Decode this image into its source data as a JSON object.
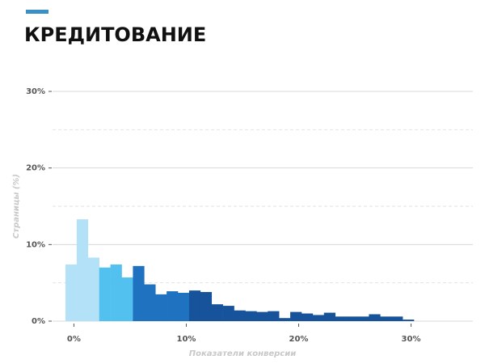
{
  "chart_data": {
    "type": "histogram",
    "title": "КРЕДИТОВАНИЕ",
    "x_label": "Показатели конверсии",
    "y_label": "Страницы (%)",
    "bins": [
      -0.75,
      0.25,
      1.25,
      2.25,
      3.25,
      4.25,
      5.25,
      6.25,
      7.25,
      8.25,
      9.25,
      10.25,
      11.25,
      12.25,
      13.25,
      14.25,
      15.25,
      16.25,
      17.25,
      18.25,
      19.25,
      20.25,
      21.25,
      22.25,
      23.25,
      24.25,
      25.25,
      26.25,
      27.25,
      28.25,
      29.25,
      30.25
    ],
    "values": [
      7.4,
      13.3,
      8.3,
      7.0,
      7.4,
      5.7,
      7.2,
      4.8,
      3.5,
      3.9,
      3.7,
      4.0,
      3.8,
      2.2,
      2.0,
      1.4,
      1.3,
      1.2,
      1.3,
      0.4,
      1.2,
      1.0,
      0.8,
      1.1,
      0.6,
      0.6,
      0.6,
      0.9,
      0.6,
      0.6,
      0.2
    ],
    "colors": [
      "#b3e2f8",
      "#b3e2f8",
      "#b3e2f8",
      "#52c1ef",
      "#52c1ef",
      "#52c1ef",
      "#1f72bf",
      "#1f72bf",
      "#1f72bf",
      "#1f72bf",
      "#1f72bf",
      "#17539a",
      "#17539a",
      "#17539a",
      "#17539a",
      "#17539a",
      "#17539a",
      "#17539a",
      "#17539a",
      "#17539a",
      "#17539a",
      "#17539a",
      "#17539a",
      "#17539a",
      "#17539a",
      "#17539a",
      "#17539a",
      "#17539a",
      "#17539a",
      "#17539a",
      "#17539a"
    ],
    "xlim": [
      -1.9,
      35.5
    ],
    "ylim": [
      0,
      30
    ],
    "xticks": [
      {
        "value": 0,
        "label": "0%"
      },
      {
        "value": 10,
        "label": "10%"
      },
      {
        "value": 20,
        "label": "20%"
      },
      {
        "value": 30,
        "label": "30%"
      }
    ],
    "yticks": [
      {
        "value": 0,
        "label": "0%"
      },
      {
        "value": 10,
        "label": "10%"
      },
      {
        "value": 20,
        "label": "20%"
      },
      {
        "value": 30,
        "label": "30%"
      }
    ],
    "minor_yticks": [
      5,
      15,
      25
    ],
    "grid": true
  }
}
